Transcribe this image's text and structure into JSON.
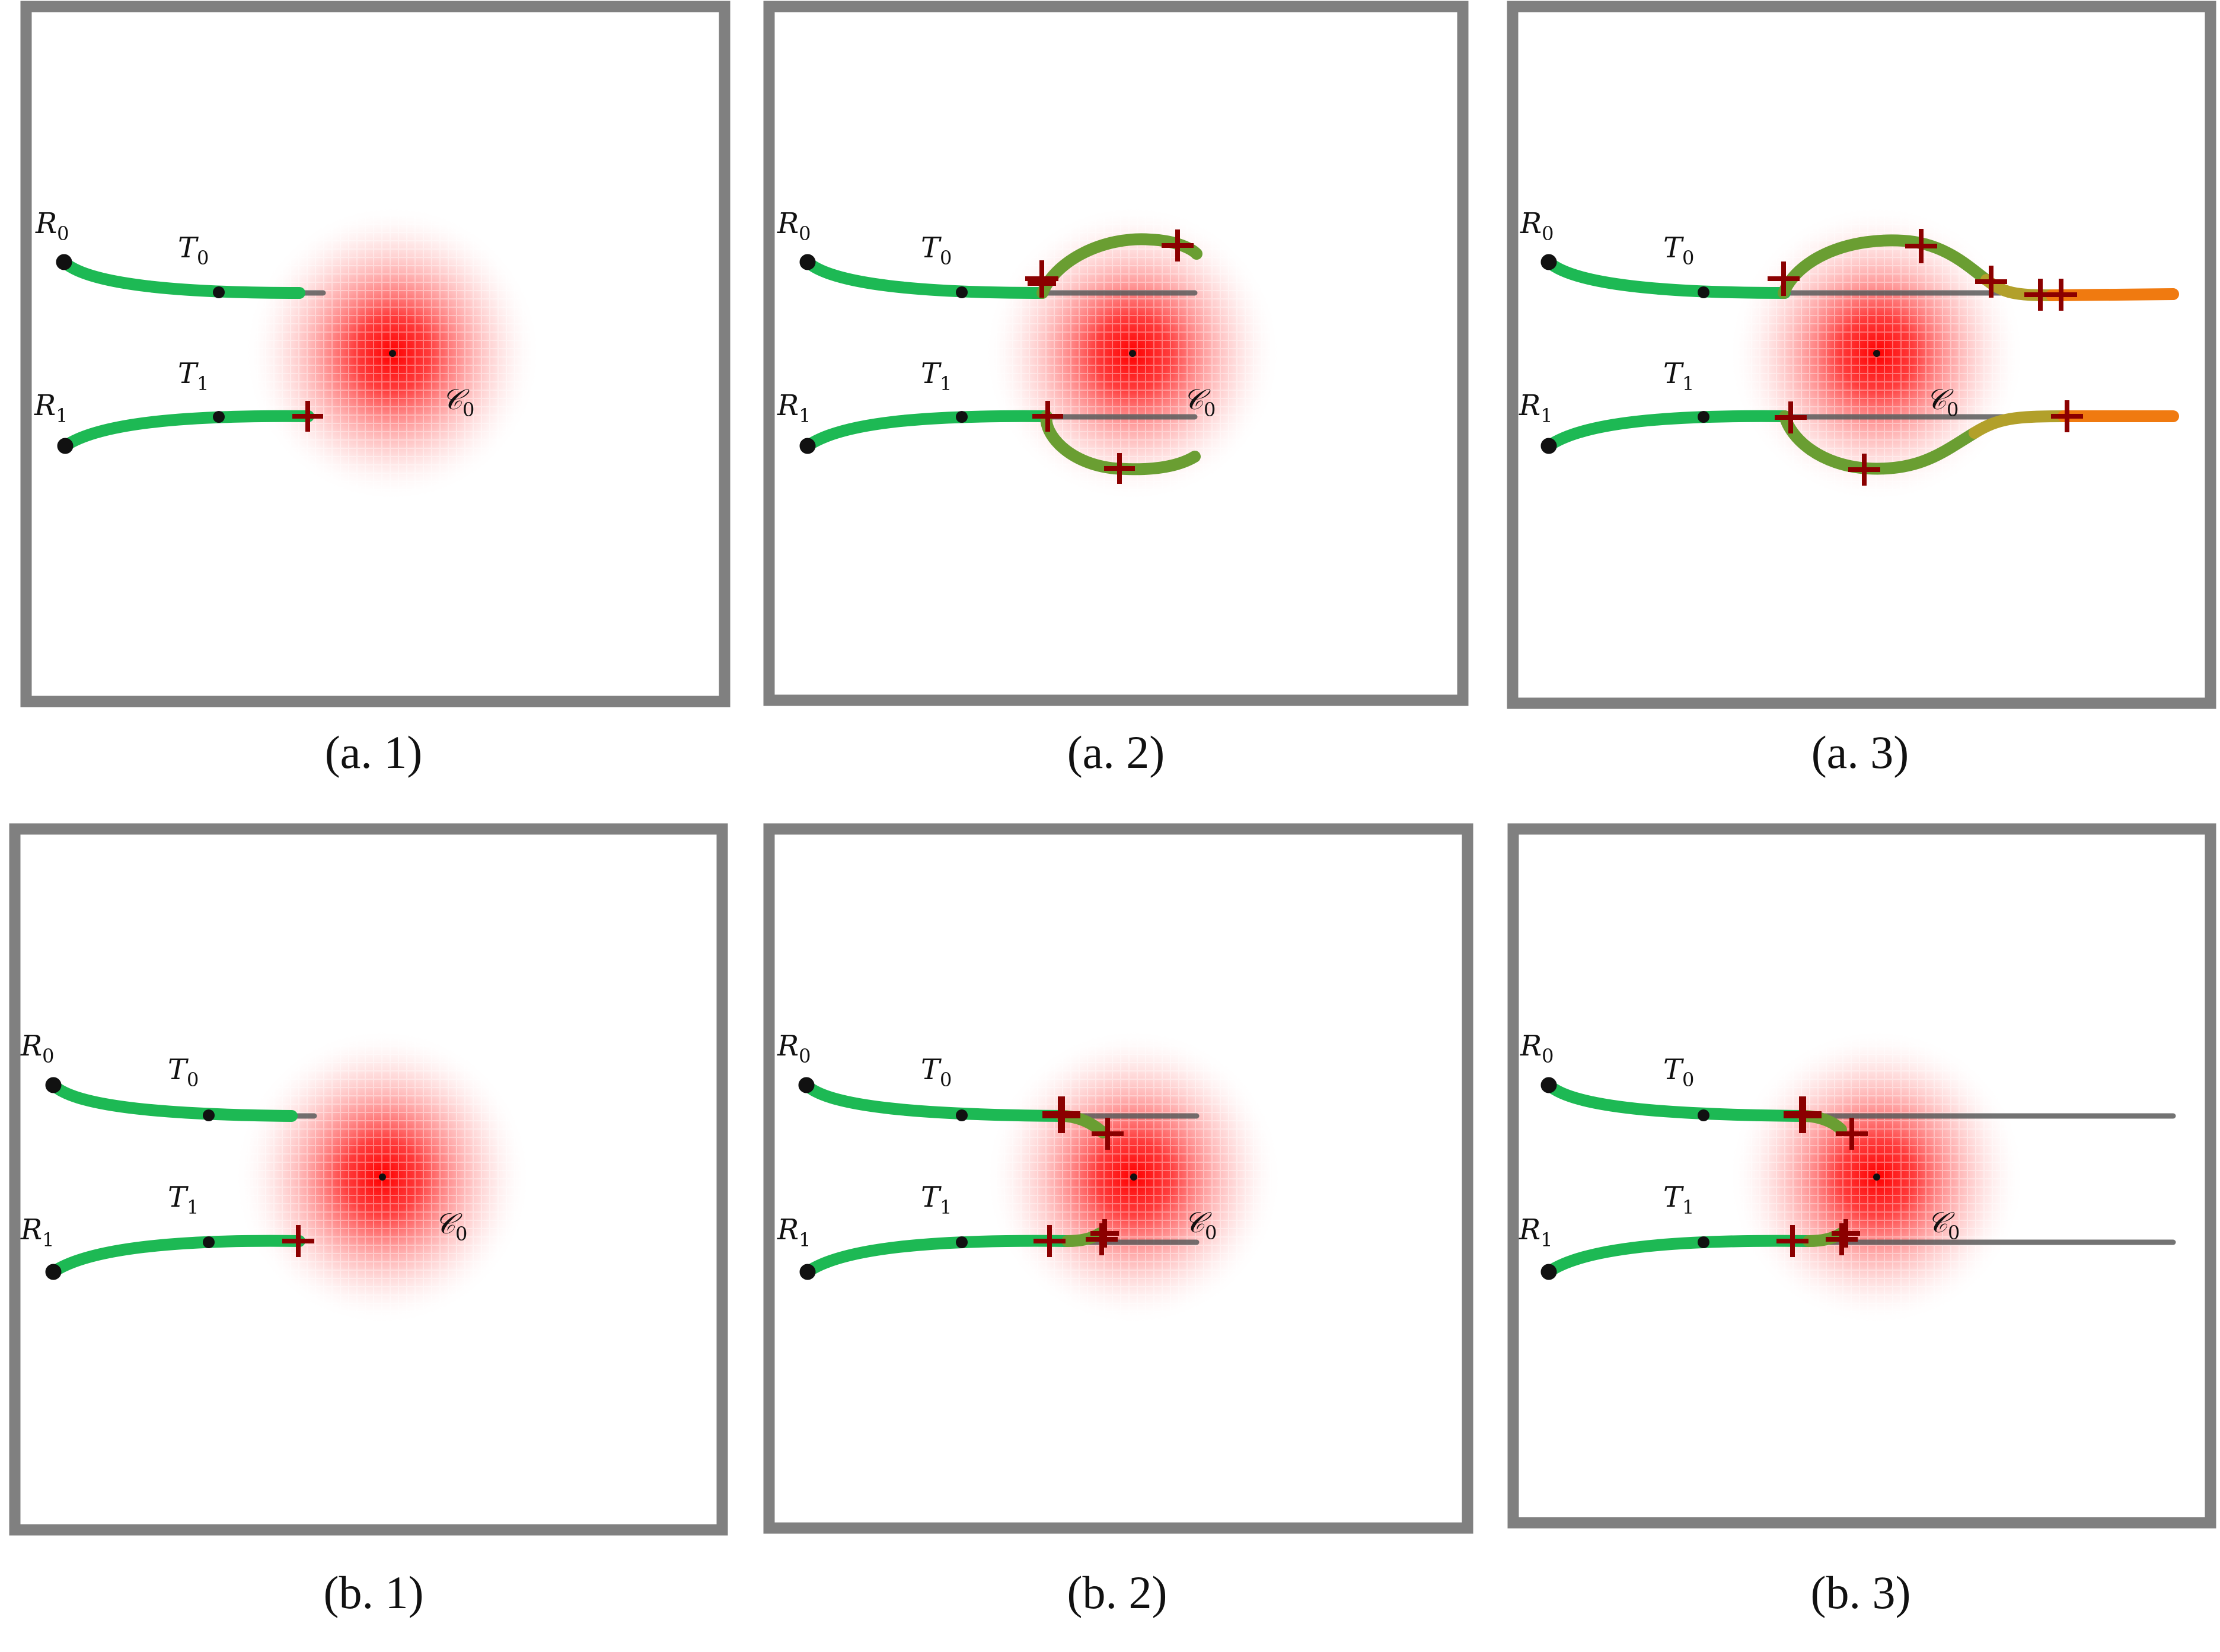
{
  "colors": {
    "frame": "#808080",
    "trajectory_start": "#1db954",
    "trajectory_mid": "#6a9e32",
    "trajectory_late": "#b2a02a",
    "trajectory_end": "#f07a10",
    "reference_path": "#5a5a5a",
    "marker": "#8b0000",
    "field_center": "#ff0000",
    "robot": "#111111"
  },
  "icons": {
    "robot_start": "filled-circle-icon",
    "target": "small-dot-icon",
    "marker": "cross-icon",
    "field": "radial-gradient-disc"
  },
  "labels": {
    "R0": {
      "base": "R",
      "sub": "0"
    },
    "R1": {
      "base": "R",
      "sub": "1"
    },
    "T0": {
      "base": "T",
      "sub": "0"
    },
    "T1": {
      "base": "T",
      "sub": "1"
    },
    "C0": {
      "base": "𝒞",
      "sub": "0"
    }
  },
  "panels": [
    {
      "id": "a1",
      "caption": "(a. 1)"
    },
    {
      "id": "a2",
      "caption": "(a. 2)"
    },
    {
      "id": "a3",
      "caption": "(a. 3)"
    },
    {
      "id": "b1",
      "caption": "(b. 1)"
    },
    {
      "id": "b2",
      "caption": "(b. 2)"
    },
    {
      "id": "b3",
      "caption": "(b. 3)"
    }
  ]
}
